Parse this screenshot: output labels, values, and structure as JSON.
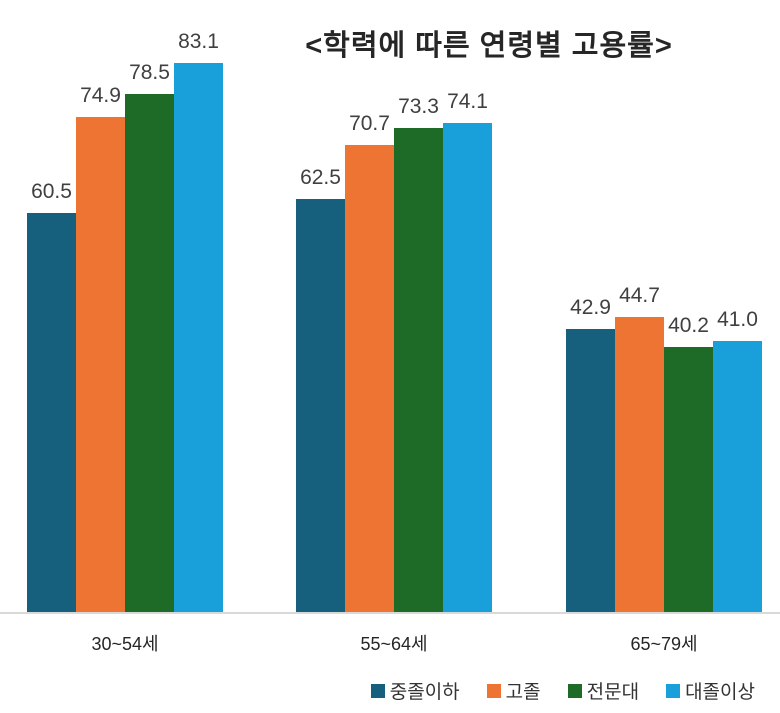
{
  "chart_data": {
    "type": "bar",
    "title": "<학력에 따른 연령별 고용률>",
    "xlabel": "",
    "ylabel": "",
    "categories": [
      "30~54세",
      "55~64세",
      "65~79세"
    ],
    "series": [
      {
        "name": "중졸이하",
        "color": "#16607E",
        "values": [
          60.5,
          62.5,
          42.9
        ]
      },
      {
        "name": "고졸",
        "color": "#EE7433",
        "values": [
          74.9,
          70.7,
          44.7
        ]
      },
      {
        "name": "전문대",
        "color": "#1D6B27",
        "values": [
          78.5,
          73.3,
          40.2
        ]
      },
      {
        "name": "대졸이상",
        "color": "#199FD9",
        "values": [
          83.1,
          74.1,
          41.0
        ]
      }
    ],
    "ylim": [
      0,
      93
    ],
    "grid": false,
    "data_labels": true,
    "data_label_decimals": 1,
    "data_label_color": "#404040",
    "axis_line_color": "#d9d9d9",
    "legend_position": "bottom-right",
    "legend_entries": [
      "중졸이하",
      "고졸",
      "전문대",
      "대졸이상"
    ]
  }
}
